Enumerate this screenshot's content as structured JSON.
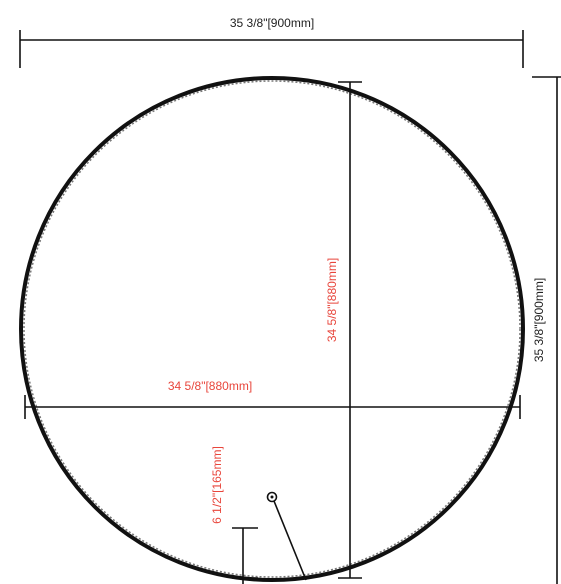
{
  "dimensions": {
    "overall_width": "35 3/8\"[900mm]",
    "overall_height": "35 3/8\"[900mm]",
    "mirror_height": "34 5/8\"[880mm]",
    "mirror_width": "34 5/8\"[880mm]",
    "hanger_offset": "6 1/2\"[165mm]"
  }
}
